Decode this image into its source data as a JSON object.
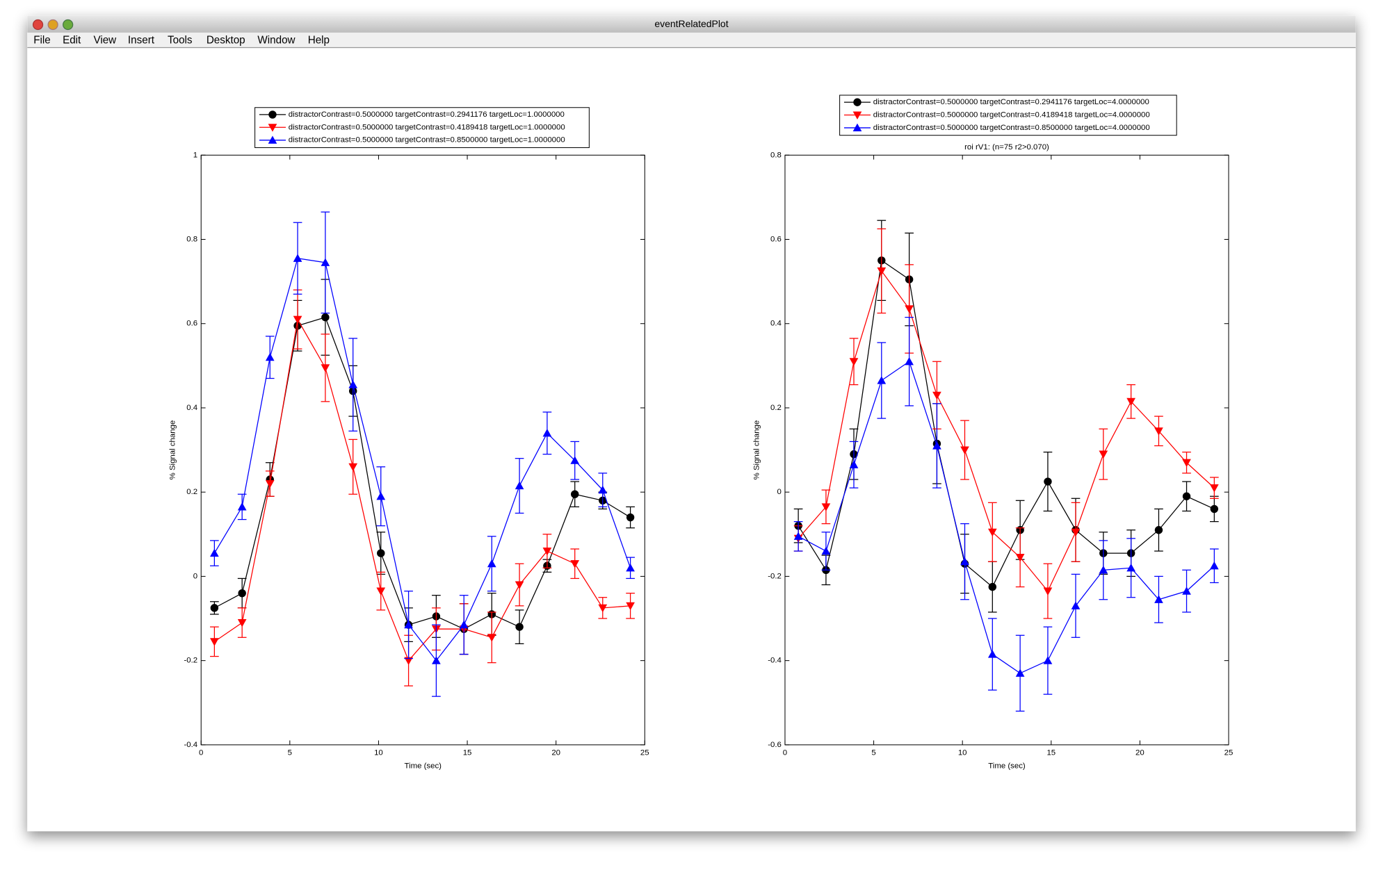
{
  "window": {
    "title": "eventRelatedPlot",
    "menu": [
      "File",
      "Edit",
      "View",
      "Insert",
      "Tools",
      "Desktop",
      "Window",
      "Help"
    ]
  },
  "chart_data": [
    {
      "type": "line",
      "ylabel": "% Signal change",
      "xlabel": "Time (sec)",
      "x": [
        0.75,
        2.31,
        3.88,
        5.44,
        7.0,
        8.56,
        10.13,
        11.69,
        13.25,
        14.81,
        16.38,
        17.94,
        19.5,
        21.06,
        22.63,
        24.19
      ],
      "xlim": [
        0,
        25
      ],
      "xticks": [
        0,
        5,
        10,
        15,
        20,
        25
      ],
      "ylim": [
        -0.4,
        1
      ],
      "yticks": [
        -0.4,
        -0.2,
        0,
        0.2,
        0.4,
        0.6,
        0.8,
        1
      ],
      "series": [
        {
          "name": "distractorContrast=0.5000000 targetContrast=0.2941176 targetLoc=1.0000000",
          "color": "#000000",
          "marker": "circle",
          "values": [
            -0.075,
            -0.04,
            0.23,
            0.595,
            0.615,
            0.44,
            0.055,
            -0.115,
            -0.095,
            -0.125,
            -0.09,
            -0.12,
            0.025,
            0.195,
            0.18,
            0.14
          ],
          "errors": [
            0.015,
            0.035,
            0.04,
            0.06,
            0.09,
            0.06,
            0.05,
            0.04,
            0.05,
            0.06,
            0.05,
            0.04,
            0.015,
            0.03,
            0.02,
            0.025
          ]
        },
        {
          "name": "distractorContrast=0.5000000 targetContrast=0.4189418 targetLoc=1.0000000",
          "color": "#ff0000",
          "marker": "triangle-down",
          "values": [
            -0.155,
            -0.11,
            0.22,
            0.61,
            0.495,
            0.26,
            -0.035,
            -0.2,
            -0.125,
            -0.125,
            -0.145,
            -0.02,
            0.06,
            0.03,
            -0.075,
            -0.07
          ],
          "errors": [
            0.035,
            0.035,
            0.03,
            0.07,
            0.08,
            0.065,
            0.045,
            0.06,
            0.05,
            0.06,
            0.06,
            0.05,
            0.04,
            0.035,
            0.025,
            0.03
          ]
        },
        {
          "name": "distractorContrast=0.5000000 targetContrast=0.8500000 targetLoc=1.0000000",
          "color": "#0000ff",
          "marker": "triangle-up",
          "values": [
            0.055,
            0.165,
            0.52,
            0.755,
            0.745,
            0.455,
            0.19,
            -0.115,
            -0.2,
            -0.115,
            0.03,
            0.215,
            0.34,
            0.275,
            0.205,
            0.02
          ],
          "errors": [
            0.03,
            0.03,
            0.05,
            0.085,
            0.12,
            0.11,
            0.07,
            0.08,
            0.085,
            0.07,
            0.065,
            0.065,
            0.05,
            0.045,
            0.04,
            0.025
          ]
        }
      ]
    },
    {
      "type": "line",
      "title": "roi rV1: (n=75 r2>0.070)",
      "ylabel": "% Signal change",
      "xlabel": "Time (sec)",
      "x": [
        0.75,
        2.31,
        3.88,
        5.44,
        7.0,
        8.56,
        10.13,
        11.69,
        13.25,
        14.81,
        16.38,
        17.94,
        19.5,
        21.06,
        22.63,
        24.19
      ],
      "xlim": [
        0,
        25
      ],
      "xticks": [
        0,
        5,
        10,
        15,
        20,
        25
      ],
      "ylim": [
        -0.6,
        0.8
      ],
      "yticks": [
        -0.6,
        -0.4,
        -0.2,
        0,
        0.2,
        0.4,
        0.6,
        0.8
      ],
      "series": [
        {
          "name": "distractorContrast=0.5000000 targetContrast=0.2941176 targetLoc=4.0000000",
          "color": "#000000",
          "marker": "circle",
          "values": [
            -0.08,
            -0.185,
            0.09,
            0.55,
            0.505,
            0.115,
            -0.17,
            -0.225,
            -0.09,
            0.025,
            -0.09,
            -0.145,
            -0.145,
            -0.09,
            -0.01,
            -0.04
          ],
          "errors": [
            0.04,
            0.035,
            0.06,
            0.095,
            0.11,
            0.095,
            0.07,
            0.06,
            0.07,
            0.07,
            0.075,
            0.05,
            0.055,
            0.05,
            0.035,
            0.03
          ]
        },
        {
          "name": "distractorContrast=0.5000000 targetContrast=0.4189418 targetLoc=4.0000000",
          "color": "#ff0000",
          "marker": "triangle-down",
          "values": [
            -0.11,
            -0.035,
            0.31,
            0.525,
            0.435,
            0.23,
            0.1,
            -0.095,
            -0.155,
            -0.235,
            -0.095,
            0.09,
            0.215,
            0.145,
            0.07,
            0.01
          ],
          "errors": [
            0.03,
            0.04,
            0.055,
            0.1,
            0.105,
            0.08,
            0.07,
            0.07,
            0.07,
            0.065,
            0.07,
            0.06,
            0.04,
            0.035,
            0.025,
            0.025
          ]
        },
        {
          "name": "distractorContrast=0.5000000 targetContrast=0.8500000 targetLoc=4.0000000",
          "color": "#0000ff",
          "marker": "triangle-up",
          "values": [
            -0.105,
            -0.14,
            0.065,
            0.265,
            0.31,
            0.11,
            -0.165,
            -0.385,
            -0.43,
            -0.4,
            -0.27,
            -0.185,
            -0.18,
            -0.255,
            -0.235,
            -0.175
          ],
          "errors": [
            0.035,
            0.045,
            0.055,
            0.09,
            0.105,
            0.1,
            0.09,
            0.085,
            0.09,
            0.08,
            0.075,
            0.07,
            0.07,
            0.055,
            0.05,
            0.04
          ]
        }
      ]
    }
  ]
}
